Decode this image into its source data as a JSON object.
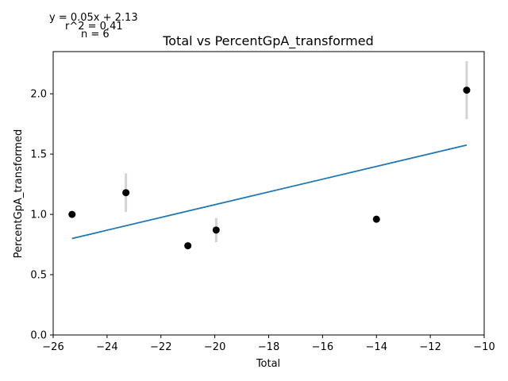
{
  "chart_data": {
    "type": "scatter",
    "title": "Total vs PercentGpA_transformed",
    "xlabel": "Total",
    "ylabel": "PercentGpA_transformed",
    "xlim": [
      -26,
      -10
    ],
    "ylim": [
      0,
      2.35
    ],
    "x_ticks": [
      -26,
      -24,
      -22,
      -20,
      -18,
      -16,
      -14,
      -12,
      -10
    ],
    "y_ticks": [
      0.0,
      0.5,
      1.0,
      1.5,
      2.0
    ],
    "x_tick_labels": [
      "−26",
      "−24",
      "−22",
      "−20",
      "−18",
      "−16",
      "−14",
      "−12",
      "−10"
    ],
    "y_tick_labels": [
      "0.0",
      "0.5",
      "1.0",
      "1.5",
      "2.0"
    ],
    "grid": false,
    "points": [
      {
        "x": -25.3,
        "y": 1.0,
        "err": 0.02
      },
      {
        "x": -23.3,
        "y": 1.18,
        "err": 0.16
      },
      {
        "x": -21.0,
        "y": 0.74,
        "err": 0.02
      },
      {
        "x": -19.95,
        "y": 0.87,
        "err": 0.1
      },
      {
        "x": -14.0,
        "y": 0.96,
        "err": 0.02
      },
      {
        "x": -10.65,
        "y": 2.03,
        "err": 0.24
      }
    ],
    "fit_line": {
      "x": [
        -25.3,
        -10.65
      ],
      "y": [
        0.8,
        1.575
      ],
      "color": "#1f77b4"
    },
    "annotations": [
      "y = 0.05x + 2.13",
      "r^2 = 0.41",
      "n = 6"
    ],
    "point_color": "#000000",
    "errorbar_color": "#d3d3d3"
  }
}
